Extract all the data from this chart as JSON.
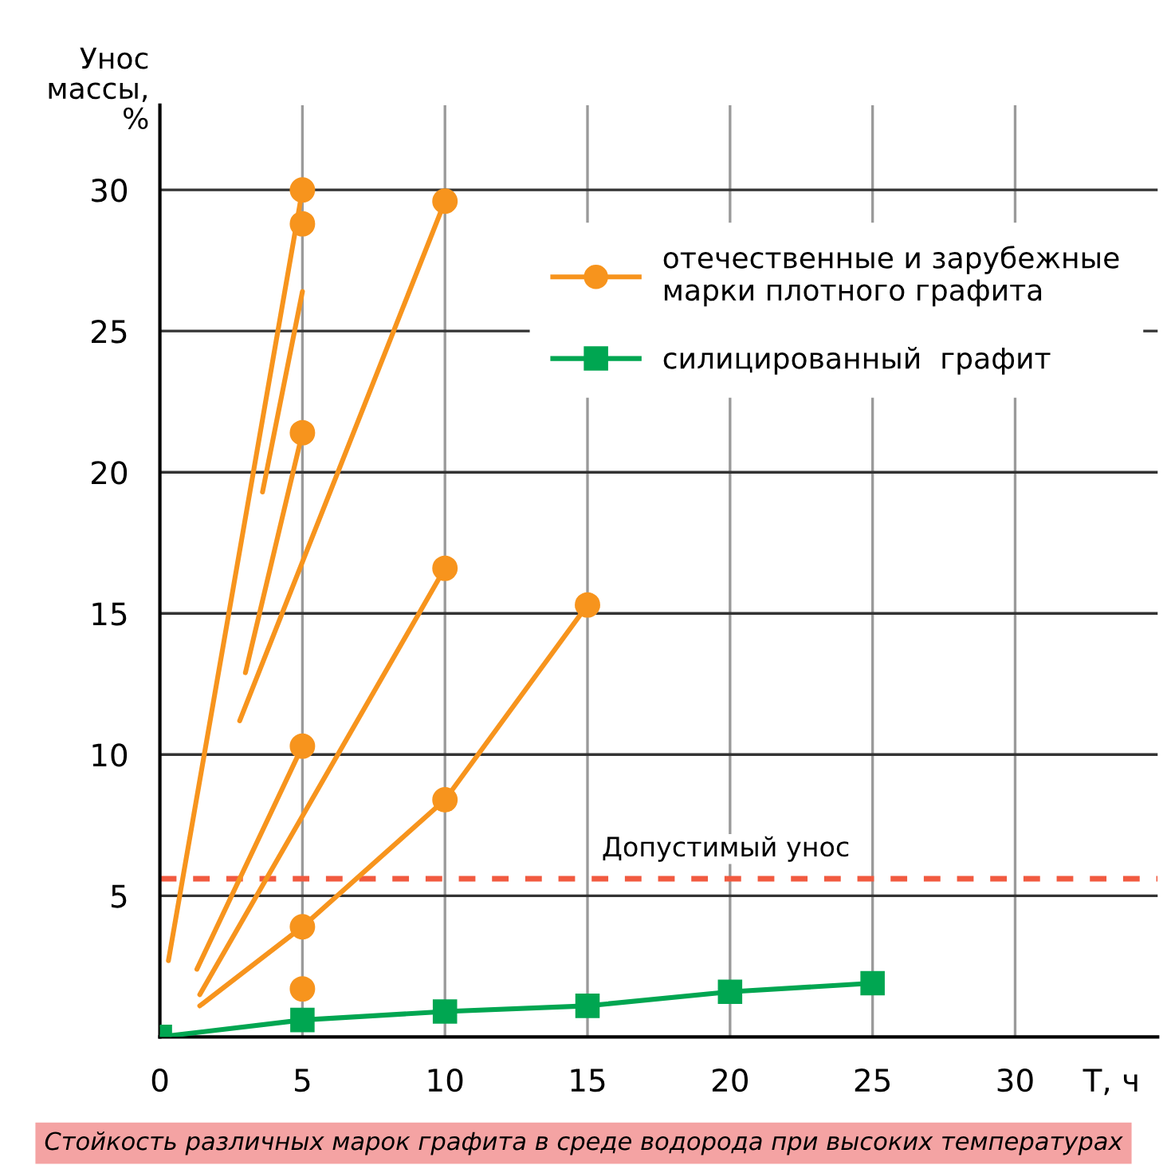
{
  "chart_data": {
    "type": "line",
    "ylabel": "Унос\nмассы,\n%",
    "xlabel": "Т, ч",
    "xlim": [
      0,
      35
    ],
    "xticks": [
      0,
      5,
      10,
      15,
      20,
      25,
      30
    ],
    "ylim": [
      0,
      33
    ],
    "yticks": [
      5,
      10,
      15,
      20,
      25,
      30
    ],
    "grid": true,
    "legend": "right",
    "series": [
      {
        "color": "#f7941d",
        "x": [
          0.3,
          5
        ],
        "values": [
          2.7,
          30
        ]
      },
      {
        "color": "#f7941d",
        "x": [
          3.6,
          5
        ],
        "values": [
          19.3,
          26.4
        ]
      },
      {
        "color": "#f7941d",
        "x": [
          3.0,
          5
        ],
        "values": [
          12.9,
          21.4
        ]
      },
      {
        "color": "#f7941d",
        "x": [
          2.8,
          10
        ],
        "values": [
          11.2,
          29.6
        ]
      },
      {
        "color": "#f7941d",
        "x": [
          1.3,
          5
        ],
        "values": [
          2.4,
          10.3
        ]
      },
      {
        "color": "#f7941d",
        "x": [
          1.4,
          10
        ],
        "values": [
          1.5,
          16.6
        ]
      },
      {
        "color": "#f7941d",
        "x": [
          1.4,
          5,
          10,
          15
        ],
        "values": [
          1.1,
          3.9,
          8.4,
          15.3
        ]
      },
      {
        "type": "scatter",
        "name": "отечественные и зарубежные\nмарки плотного графита",
        "color": "#f7941d",
        "marker": "circle",
        "x": [
          5,
          5,
          5,
          10,
          5,
          10,
          5,
          10,
          15,
          5
        ],
        "values": [
          30,
          28.8,
          21.4,
          29.6,
          10.3,
          16.6,
          3.9,
          8.4,
          15.3,
          1.7
        ]
      },
      {
        "name": "силицированный  графит",
        "color": "#00a651",
        "marker": "square",
        "x": [
          0,
          5,
          10,
          15,
          20,
          25
        ],
        "values": [
          0,
          0.6,
          0.9,
          1.1,
          1.6,
          1.9
        ]
      }
    ],
    "ref_lines": [
      {
        "axis": "y",
        "value": 5.6,
        "label": "Допустимый унос",
        "color": "#f15a40",
        "line_style": "dashed"
      }
    ],
    "annotations": [
      "Стойкость различных марок графита в среде водорода при высоких температурах"
    ]
  }
}
